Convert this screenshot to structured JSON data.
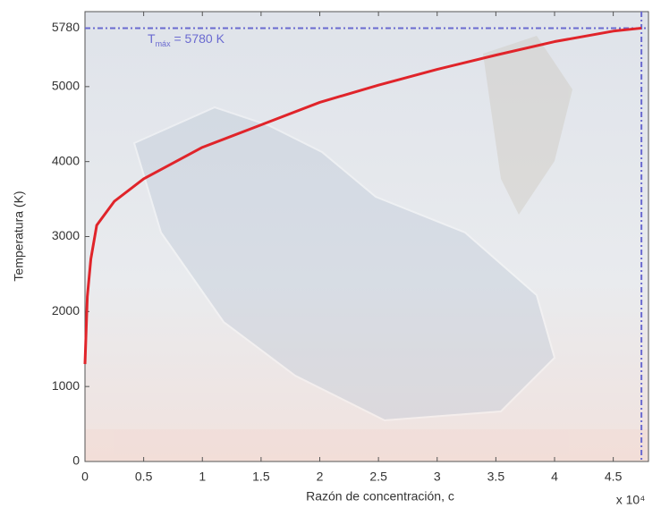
{
  "chart_data": {
    "type": "line",
    "xlabel": "Razón de concentración, c",
    "ylabel": "Temperatura (K)",
    "x_multiplier": "x 10⁴",
    "annotation": [
      "T",
      "máx",
      " = 5780 K"
    ],
    "x": [
      0,
      0.02,
      0.05,
      0.1,
      0.25,
      0.5,
      1,
      1.5,
      2,
      2.5,
      3,
      3.5,
      4,
      4.5,
      4.74
    ],
    "series": [
      {
        "color": "#e0242a",
        "values": [
          1300,
          2200,
          2700,
          3150,
          3470,
          3770,
          4190,
          4490,
          4790,
          5020,
          5230,
          5420,
          5600,
          5740,
          5780
        ]
      }
    ],
    "hline": 5780,
    "vline": 4.74,
    "ref_color": "#6a6ad0",
    "xlim": [
      0,
      4.8
    ],
    "ylim": [
      0,
      6000
    ],
    "xticks": [
      0,
      0.5,
      1,
      1.5,
      2,
      2.5,
      3,
      3.5,
      4,
      4.5
    ],
    "yticks": [
      0,
      1000,
      2000,
      3000,
      4000,
      5000,
      5780
    ]
  }
}
